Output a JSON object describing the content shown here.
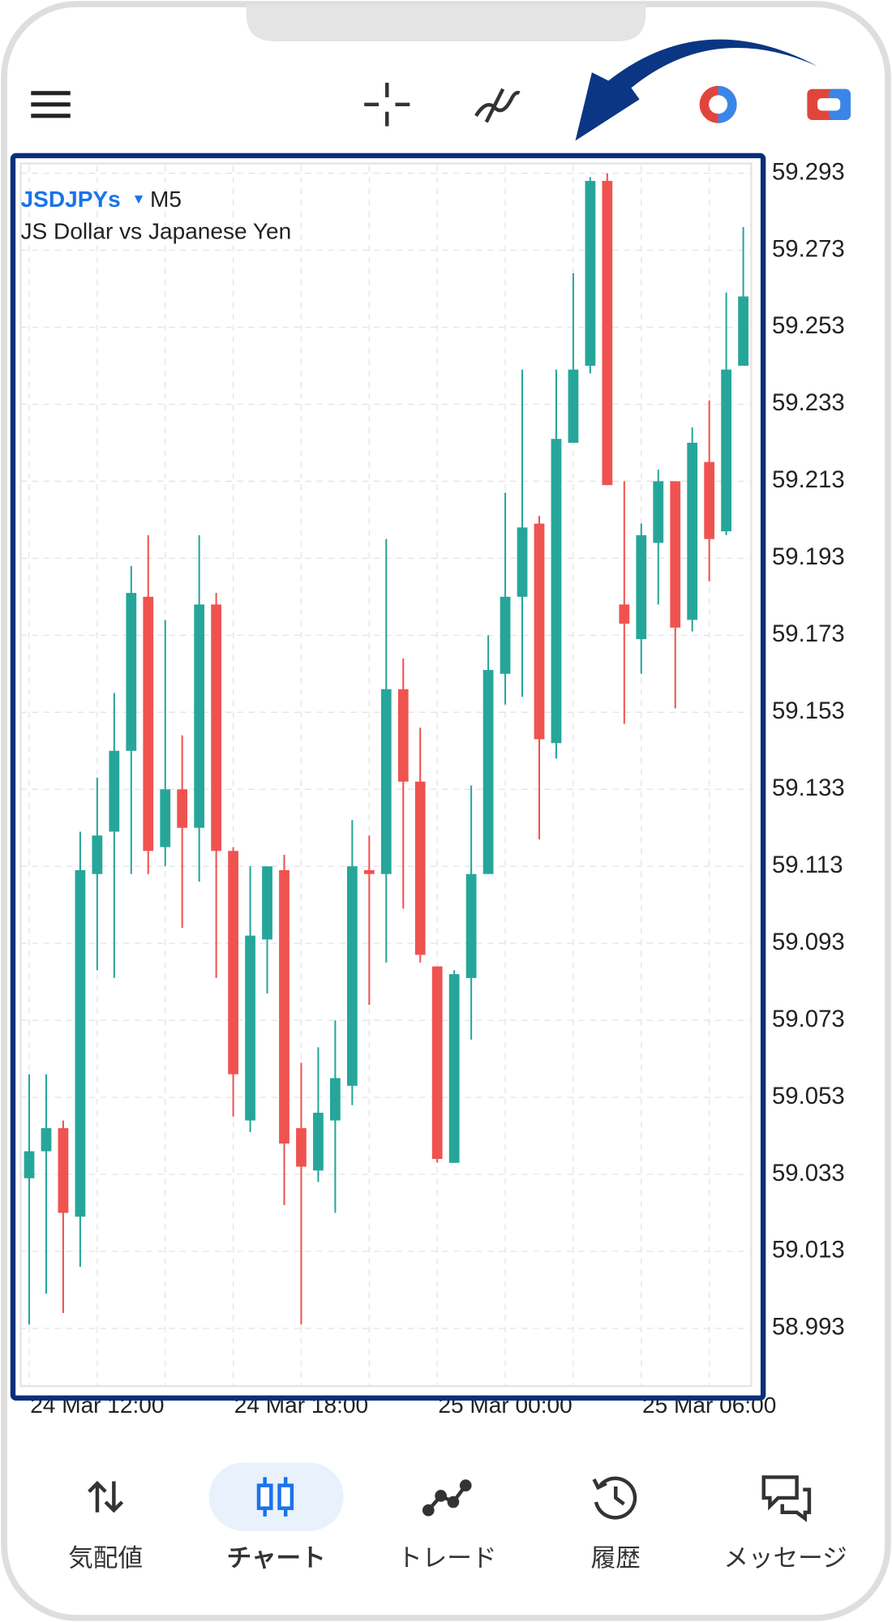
{
  "chart_data": {
    "type": "candlestick",
    "symbol": "JSDJPYs",
    "timeframe": "M5",
    "subtitle": "JS Dollar vs Japanese Yen",
    "up_color": "#26a69a",
    "down_color": "#ef5350",
    "categories": [
      null,
      null,
      null,
      null,
      "24 Mar 12:00",
      null,
      null,
      null,
      null,
      null,
      null,
      null,
      null,
      null,
      null,
      null,
      "24 Mar 18:00",
      null,
      null,
      null,
      null,
      null,
      null,
      null,
      null,
      null,
      null,
      null,
      "25 Mar 00:00",
      null,
      null,
      null,
      null,
      null,
      null,
      null,
      null,
      null,
      null,
      null,
      "25 Mar 06:00",
      null,
      null
    ],
    "open": [
      59.032,
      59.039,
      59.045,
      59.022,
      59.111,
      59.122,
      59.143,
      59.183,
      59.118,
      59.133,
      59.123,
      59.181,
      59.117,
      59.047,
      59.094,
      59.112,
      59.045,
      59.034,
      59.047,
      59.056,
      59.112,
      59.111,
      59.159,
      59.135,
      59.087,
      59.036,
      59.084,
      59.111,
      59.163,
      59.183,
      59.202,
      59.145,
      59.223,
      59.243,
      59.291,
      59.181,
      59.172,
      59.197,
      59.213,
      59.177,
      59.218,
      59.2,
      59.243
    ],
    "high": [
      59.059,
      59.059,
      59.047,
      59.122,
      59.136,
      59.158,
      59.191,
      59.199,
      59.177,
      59.147,
      59.199,
      59.184,
      59.118,
      59.113,
      59.113,
      59.116,
      59.062,
      59.066,
      59.073,
      59.125,
      59.121,
      59.198,
      59.167,
      59.149,
      59.087,
      59.086,
      59.134,
      59.173,
      59.21,
      59.242,
      59.204,
      59.242,
      59.267,
      59.292,
      59.293,
      59.213,
      59.202,
      59.216,
      59.213,
      59.227,
      59.234,
      59.262,
      59.279
    ],
    "low": [
      58.994,
      59.002,
      58.997,
      59.009,
      59.086,
      59.084,
      59.111,
      59.111,
      59.113,
      59.097,
      59.109,
      59.084,
      59.048,
      59.044,
      59.08,
      59.025,
      58.994,
      59.031,
      59.023,
      59.051,
      59.077,
      59.088,
      59.102,
      59.088,
      59.036,
      59.036,
      59.068,
      59.111,
      59.155,
      59.157,
      59.12,
      59.141,
      59.223,
      59.241,
      59.212,
      59.15,
      59.163,
      59.181,
      59.154,
      59.174,
      59.187,
      59.199,
      59.243
    ],
    "close": [
      59.039,
      59.045,
      59.023,
      59.112,
      59.121,
      59.143,
      59.184,
      59.117,
      59.133,
      59.123,
      59.181,
      59.117,
      59.059,
      59.095,
      59.113,
      59.041,
      59.035,
      59.049,
      59.058,
      59.113,
      59.111,
      59.159,
      59.135,
      59.09,
      59.037,
      59.085,
      59.111,
      59.164,
      59.183,
      59.201,
      59.146,
      59.224,
      59.242,
      59.291,
      59.212,
      59.176,
      59.199,
      59.213,
      59.175,
      59.223,
      59.198,
      59.242,
      59.261
    ],
    "ylim": [
      58.978,
      59.295
    ],
    "yticks": [
      58.993,
      59.013,
      59.033,
      59.053,
      59.073,
      59.093,
      59.113,
      59.133,
      59.153,
      59.173,
      59.193,
      59.213,
      59.233,
      59.253,
      59.273,
      59.293
    ],
    "grid": true
  },
  "nav": {
    "items": [
      {
        "label": "気配値"
      },
      {
        "label": "チャート"
      },
      {
        "label": "トレード"
      },
      {
        "label": "履歴"
      },
      {
        "label": "メッセージ"
      }
    ],
    "active": 1
  }
}
